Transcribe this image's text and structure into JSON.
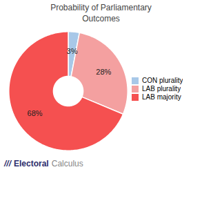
{
  "chart_data": {
    "type": "pie",
    "title": "Probability of Parliamentary\nOutcomes",
    "categories": [
      "CON plurality",
      "LAB plurality",
      "LAB majority"
    ],
    "values": [
      3,
      28,
      68
    ],
    "value_labels": [
      "3%",
      "28%",
      "68%"
    ],
    "colors": [
      "#a8c8e8",
      "#f4a0a0",
      "#f55050"
    ],
    "data_labels": true,
    "legend": "right",
    "annotations": [
      "///",
      "Electoral",
      "Calculus"
    ]
  }
}
